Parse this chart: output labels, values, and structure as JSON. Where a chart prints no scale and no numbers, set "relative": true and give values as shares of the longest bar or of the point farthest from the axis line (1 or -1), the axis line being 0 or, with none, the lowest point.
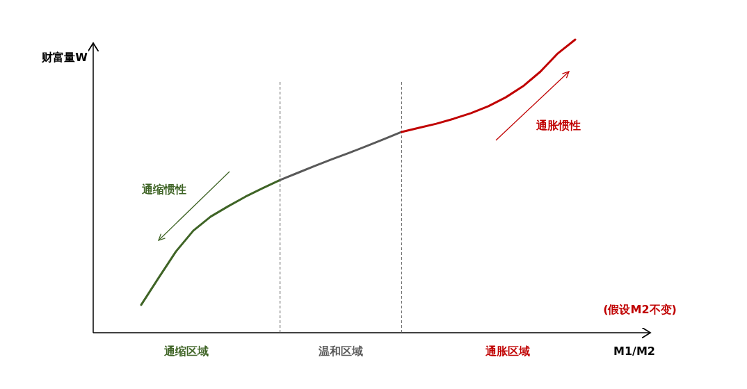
{
  "chart_data": {
    "type": "line",
    "relative": true,
    "xlabel": "M1/M2",
    "ylabel": "财富量W",
    "categories": [
      null,
      null,
      null,
      null,
      null,
      null,
      null,
      null,
      null,
      null,
      null,
      null,
      null,
      null,
      null,
      null,
      null,
      null,
      null,
      null,
      null,
      null,
      null,
      null,
      null,
      null
    ],
    "series": [
      {
        "color": "#3f6426",
        "values": [
          0.095,
          0.187,
          0.277,
          0.348,
          0.396,
          0.431,
          0.464,
          0.493,
          0.521,
          null,
          null,
          null,
          null,
          null,
          null,
          null,
          null,
          null,
          null,
          null,
          null,
          null,
          null,
          null,
          null,
          null
        ]
      },
      {
        "color": "#595959",
        "values": [
          null,
          null,
          null,
          null,
          null,
          null,
          null,
          null,
          0.521,
          0.545,
          0.569,
          0.592,
          0.614,
          0.637,
          0.661,
          0.685,
          null,
          null,
          null,
          null,
          null,
          null,
          null,
          null,
          null,
          null
        ]
      },
      {
        "color": "#c00000",
        "values": [
          null,
          null,
          null,
          null,
          null,
          null,
          null,
          null,
          null,
          null,
          null,
          null,
          null,
          null,
          null,
          0.685,
          0.699,
          0.713,
          0.73,
          0.749,
          0.773,
          0.803,
          0.841,
          0.891,
          0.953,
          1
        ]
      }
    ],
    "annotations": [
      "通缩惯性",
      "通胀惯性",
      "(假设M2不变)",
      "通缩区域",
      "温和区域",
      "通胀区域"
    ],
    "line_style": "solid",
    "marker": "none"
  }
}
